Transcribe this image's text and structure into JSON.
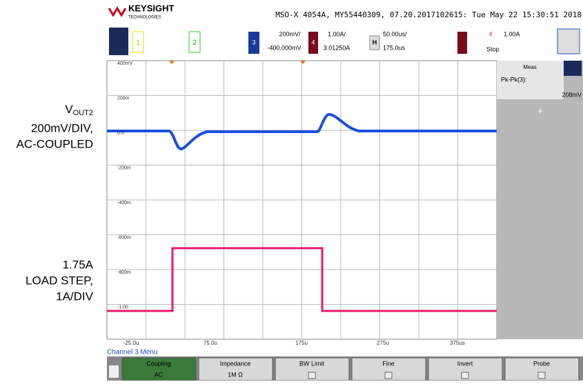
{
  "annotations": {
    "vout": {
      "main": "V",
      "sub": "OUT2",
      "lines": [
        "200mV/DIV,",
        "AC-COUPLED"
      ]
    },
    "load": {
      "lines": [
        "1.75A",
        "LOAD STEP,",
        "1A/DIV"
      ]
    }
  },
  "header": {
    "brand": "KEYSIGHT",
    "brand_sub": "TECHNOLOGIES",
    "info": "MSO-X 4054A, MY55440309, 07.20.2017102615: Tue May 22 15:30:51 2018"
  },
  "toolbar": {
    "ch1": "1",
    "ch2": "2",
    "ch3": "3",
    "ch3_scale": "200mV/",
    "ch3_offset": "-400.000mV",
    "ch4": "4",
    "ch4_scale": "1.00A/",
    "ch4_offset": "3.01250A",
    "h": "H",
    "time_scale": "50.00us/",
    "time_delay": "175.0us",
    "trig_ch": "4",
    "trig_level": "1.00A",
    "trig_state": "Stop"
  },
  "screen": {
    "ylabels": [
      "400mV",
      "200m",
      "0.0",
      "-200m",
      "-400m",
      "-600m",
      "-800m",
      "-1.00"
    ],
    "xlabels": [
      "-25.0u",
      "75.0u",
      "175u",
      "275u",
      "375us"
    ]
  },
  "measure": {
    "title": "Meas",
    "name": "Pk-Pk(3):",
    "value": "208mV"
  },
  "menu": {
    "title": "Channel 3 Menu",
    "softkeys": [
      {
        "label": "Coupling",
        "value": "AC"
      },
      {
        "label": "Impedance",
        "value": "1M Ω"
      },
      {
        "label": "BW Limit"
      },
      {
        "label": "Fine"
      },
      {
        "label": "Invert"
      },
      {
        "label": "Probe"
      }
    ]
  }
}
